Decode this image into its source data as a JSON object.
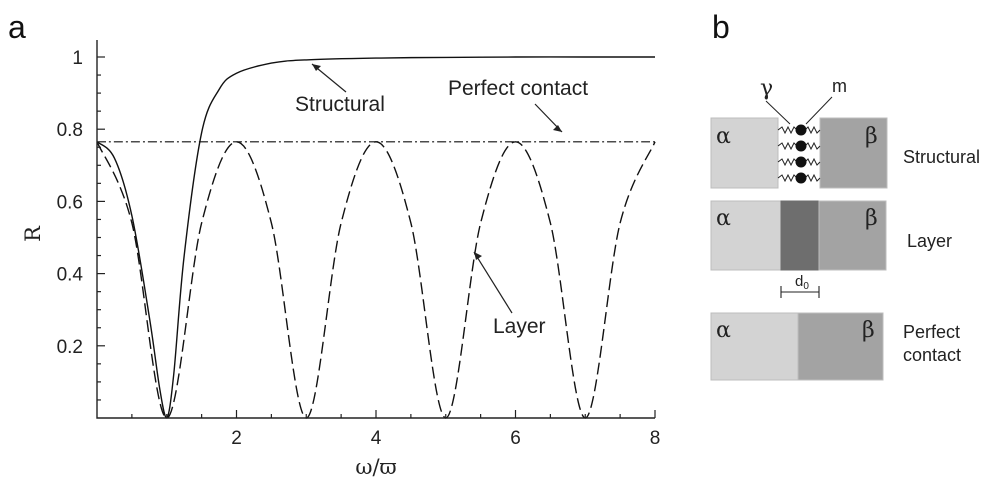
{
  "panel_labels": {
    "a": "a",
    "b": "b"
  },
  "chart_data": {
    "type": "line",
    "xlabel": "ω/ϖ",
    "ylabel": "R",
    "xlim": [
      0,
      8
    ],
    "ylim": [
      0,
      1
    ],
    "xticks": [
      2,
      4,
      6,
      8
    ],
    "yticks": [
      0.2,
      0.4,
      0.6,
      0.8,
      1
    ],
    "xtick_labels": [
      "2",
      "4",
      "6",
      "8"
    ],
    "ytick_labels": [
      "0.2",
      "0.4",
      "0.6",
      "0.8",
      "1"
    ],
    "series": [
      {
        "name": "Structural",
        "style": "solid",
        "x": [
          0,
          0.25,
          0.5,
          0.75,
          0.9,
          1.0,
          1.1,
          1.25,
          1.5,
          1.75,
          2,
          2.5,
          3,
          4,
          5,
          6,
          7,
          8
        ],
        "y": [
          0.765,
          0.72,
          0.56,
          0.28,
          0.08,
          0.0,
          0.12,
          0.45,
          0.79,
          0.91,
          0.955,
          0.983,
          0.992,
          0.997,
          0.999,
          1.0,
          1.0,
          1.0
        ]
      },
      {
        "name": "Layer",
        "style": "dashed",
        "x": [
          0,
          0.5,
          1,
          1.5,
          2,
          2.5,
          3,
          3.5,
          4,
          4.5,
          5,
          5.5,
          6,
          6.5,
          7,
          7.5,
          8
        ],
        "y": [
          0.765,
          0.54,
          0.0,
          0.54,
          0.765,
          0.54,
          0.0,
          0.54,
          0.765,
          0.54,
          0.0,
          0.54,
          0.765,
          0.54,
          0.0,
          0.54,
          0.765
        ]
      },
      {
        "name": "Perfect contact",
        "style": "dashdot",
        "x": [
          0,
          8
        ],
        "y": [
          0.765,
          0.765
        ]
      }
    ],
    "annotations": [
      {
        "text": "Structural"
      },
      {
        "text": "Perfect contact"
      },
      {
        "text": "Layer"
      }
    ]
  },
  "diagram": {
    "alpha": "α",
    "beta": "β",
    "gamma": "γ",
    "m": "m",
    "d0": "d",
    "d0_sub": "0",
    "rows": [
      {
        "label_lines": [
          "Structural"
        ]
      },
      {
        "label_lines": [
          "Layer"
        ]
      },
      {
        "label_lines": [
          "Perfect",
          "contact"
        ]
      }
    ],
    "colors": {
      "alpha": "#d3d3d3",
      "beta": "#a3a3a3",
      "layer": "#6e6e6e",
      "border": "#bdbdbd"
    }
  }
}
